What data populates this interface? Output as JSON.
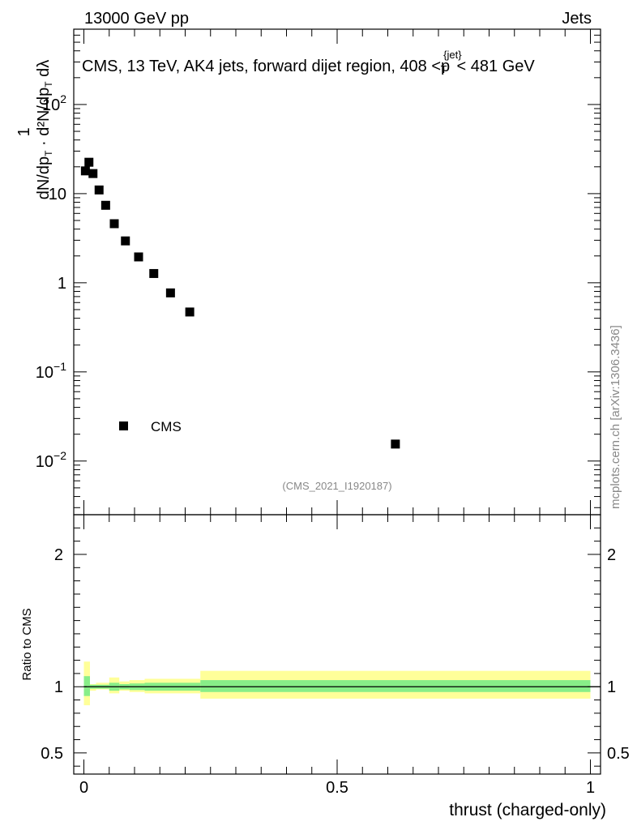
{
  "header": {
    "energy": "13000 GeV pp",
    "category": "Jets"
  },
  "side_label": "mcplots.cern.ch [arXiv:1306.3436]",
  "watermark": "(CMS_2021_I1920187)",
  "chart_data": [
    {
      "type": "scatter",
      "panel": "main",
      "title": "CMS, 13 TeV, AK4 jets, forward dijet region, 408 <p_T^{jet}< 481 GeV",
      "xlabel": "thrust (charged-only)",
      "ylabel": "1/(dN/dp_T) · d²N/(dp_T dλ)",
      "yscale": "log",
      "xlim": [
        -0.02,
        1.02
      ],
      "ylim": [
        0.0025,
        700
      ],
      "legend": {
        "entries": [
          "CMS"
        ],
        "placement": "middle-left"
      },
      "y_ticks": [
        {
          "value": 0.01,
          "base": "10",
          "exp": "−2"
        },
        {
          "value": 0.1,
          "base": "10",
          "exp": "−1"
        },
        {
          "value": 1,
          "base": "1",
          "exp": ""
        },
        {
          "value": 10,
          "base": "10",
          "exp": ""
        },
        {
          "value": 100,
          "base": "10",
          "exp": "2"
        }
      ],
      "series": [
        {
          "name": "CMS",
          "color": "#000000",
          "x": [
            0.003,
            0.01,
            0.018,
            0.03,
            0.043,
            0.06,
            0.082,
            0.108,
            0.138,
            0.171,
            0.209,
            0.615
          ],
          "values": [
            18.0,
            22.5,
            16.8,
            11.0,
            7.4,
            4.6,
            2.95,
            1.95,
            1.27,
            0.77,
            0.47,
            0.0155
          ]
        }
      ]
    },
    {
      "type": "area",
      "panel": "ratio",
      "ylabel": "Ratio to CMS",
      "xlabel": "thrust (charged-only)",
      "xlim": [
        -0.02,
        1.02
      ],
      "ylim": [
        0.34,
        2.3
      ],
      "x_ticks": [
        "0",
        "0.5",
        "1"
      ],
      "y_ticks": [
        "0.5",
        "1",
        "2"
      ],
      "reference_line": 1.0,
      "bin_edges": [
        0,
        0.012,
        0.024,
        0.05,
        0.07,
        0.09,
        0.12,
        0.23,
        1.0
      ],
      "bands": [
        {
          "name": "total uncertainty",
          "color": "#ffff99",
          "low": [
            0.86,
            0.97,
            0.98,
            0.95,
            0.97,
            0.96,
            0.95,
            0.91
          ],
          "high": [
            1.19,
            1.02,
            1.03,
            1.07,
            1.04,
            1.05,
            1.06,
            1.12
          ]
        },
        {
          "name": "statistical uncertainty",
          "color": "#88ee88",
          "low": [
            0.93,
            0.985,
            0.985,
            0.97,
            0.98,
            0.975,
            0.97,
            0.96
          ],
          "high": [
            1.08,
            1.015,
            1.015,
            1.03,
            1.02,
            1.025,
            1.03,
            1.05
          ]
        }
      ]
    }
  ]
}
